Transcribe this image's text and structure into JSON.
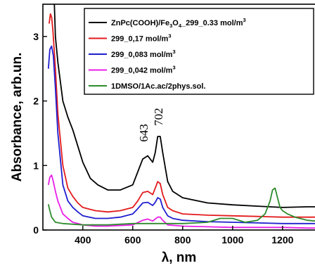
{
  "chart_data": {
    "type": "line",
    "xlabel": "λ, nm",
    "ylabel": "Absorbance, arb.un.",
    "xlim": [
      240,
      1330
    ],
    "ylim": [
      0,
      3.5
    ],
    "xticks": [
      400,
      600,
      800,
      1000,
      1200
    ],
    "xtick_labels": [
      "400",
      "600",
      "800",
      "1000",
      "1200"
    ],
    "yticks": [
      0,
      1,
      2,
      3
    ],
    "ytick_labels": [
      "0",
      "1",
      "2",
      "3"
    ],
    "grid": false,
    "legend_position": "top-right",
    "annotations": [
      {
        "text": "643",
        "x": 643,
        "y": 1.3
      },
      {
        "text": "702",
        "x": 702,
        "y": 1.55
      }
    ],
    "series": [
      {
        "name": "ZnPc(COOH)/Fe3O4_299_0.33 mol/m3",
        "legend": {
          "main": "ZnPc(COOH)/Fe",
          "sub1": "3",
          "mid": "O",
          "sub2": "4",
          "tail": "_299_0.33 mol/m",
          "sup": "3"
        },
        "color": "#000000",
        "x": [
          285,
          290,
          300,
          320,
          340,
          360,
          380,
          400,
          430,
          460,
          500,
          550,
          600,
          620,
          640,
          660,
          680,
          690,
          700,
          710,
          720,
          740,
          760,
          800,
          900,
          1000,
          1100,
          1200,
          1300,
          1330
        ],
        "y": [
          3.6,
          3.0,
          2.6,
          2.0,
          1.75,
          1.55,
          1.3,
          1.05,
          0.8,
          0.7,
          0.62,
          0.62,
          0.7,
          0.9,
          1.1,
          1.15,
          1.05,
          1.2,
          1.45,
          1.45,
          1.2,
          0.75,
          0.6,
          0.5,
          0.42,
          0.39,
          0.37,
          0.35,
          0.36,
          0.36
        ]
      },
      {
        "name": "299_0,17 mol/m3",
        "legend": {
          "main": "299_0,17 mol/m",
          "sup": "3"
        },
        "color": "#e31a1c",
        "x": [
          265,
          270,
          275,
          280,
          290,
          300,
          320,
          340,
          360,
          380,
          400,
          450,
          500,
          550,
          600,
          620,
          640,
          660,
          680,
          690,
          700,
          710,
          720,
          740,
          760,
          800,
          900,
          1000,
          1100,
          1200,
          1300,
          1330
        ],
        "y": [
          3.2,
          3.35,
          3.3,
          3.1,
          2.5,
          1.8,
          1.0,
          0.65,
          0.52,
          0.42,
          0.35,
          0.3,
          0.28,
          0.3,
          0.35,
          0.45,
          0.58,
          0.6,
          0.55,
          0.65,
          0.75,
          0.72,
          0.55,
          0.35,
          0.3,
          0.25,
          0.23,
          0.22,
          0.21,
          0.2,
          0.2,
          0.2
        ]
      },
      {
        "name": "299_0,083 mol/m3",
        "legend": {
          "main": "299_0,083 mol/m",
          "sup": "3"
        },
        "color": "#1f1fcf",
        "x": [
          262,
          268,
          275,
          282,
          290,
          300,
          320,
          340,
          360,
          380,
          400,
          450,
          500,
          550,
          600,
          620,
          640,
          660,
          680,
          690,
          700,
          710,
          720,
          740,
          760,
          800,
          900,
          1000,
          1100,
          1200,
          1300,
          1330
        ],
        "y": [
          2.5,
          2.8,
          2.85,
          2.7,
          2.2,
          1.5,
          0.7,
          0.45,
          0.35,
          0.28,
          0.22,
          0.18,
          0.18,
          0.2,
          0.25,
          0.33,
          0.42,
          0.43,
          0.38,
          0.43,
          0.5,
          0.48,
          0.35,
          0.22,
          0.18,
          0.15,
          0.13,
          0.12,
          0.11,
          0.1,
          0.1,
          0.1
        ]
      },
      {
        "name": "299_0,042 mol/m3",
        "legend": {
          "main": "299_0,042 mol/m",
          "sup": "3"
        },
        "color": "#e81ee8",
        "x": [
          262,
          268,
          275,
          282,
          290,
          300,
          320,
          340,
          360,
          380,
          400,
          450,
          500,
          600,
          640,
          660,
          680,
          700,
          710,
          720,
          740,
          800,
          900,
          1000,
          1100,
          1200,
          1300,
          1330
        ],
        "y": [
          0.7,
          0.82,
          0.85,
          0.75,
          0.6,
          0.45,
          0.25,
          0.18,
          0.12,
          0.1,
          0.08,
          0.06,
          0.06,
          0.08,
          0.15,
          0.17,
          0.14,
          0.2,
          0.2,
          0.15,
          0.08,
          0.06,
          0.05,
          0.04,
          0.04,
          0.04,
          0.03,
          0.03
        ]
      },
      {
        "name": "1DMSO/1Ac.ac/2phys.sol.",
        "legend": {
          "main": "1DMSO/1Ac.ac/2phys.sol."
        },
        "color": "#2e8b2e",
        "x": [
          262,
          268,
          275,
          290,
          320,
          400,
          500,
          600,
          700,
          800,
          900,
          950,
          1000,
          1050,
          1100,
          1130,
          1150,
          1160,
          1170,
          1180,
          1190,
          1200,
          1220,
          1250,
          1300,
          1330
        ],
        "y": [
          0.4,
          0.3,
          0.2,
          0.12,
          0.1,
          0.08,
          0.08,
          0.1,
          0.1,
          0.1,
          0.12,
          0.18,
          0.18,
          0.12,
          0.15,
          0.25,
          0.45,
          0.62,
          0.65,
          0.5,
          0.35,
          0.3,
          0.25,
          0.2,
          0.15,
          0.14
        ]
      }
    ]
  }
}
